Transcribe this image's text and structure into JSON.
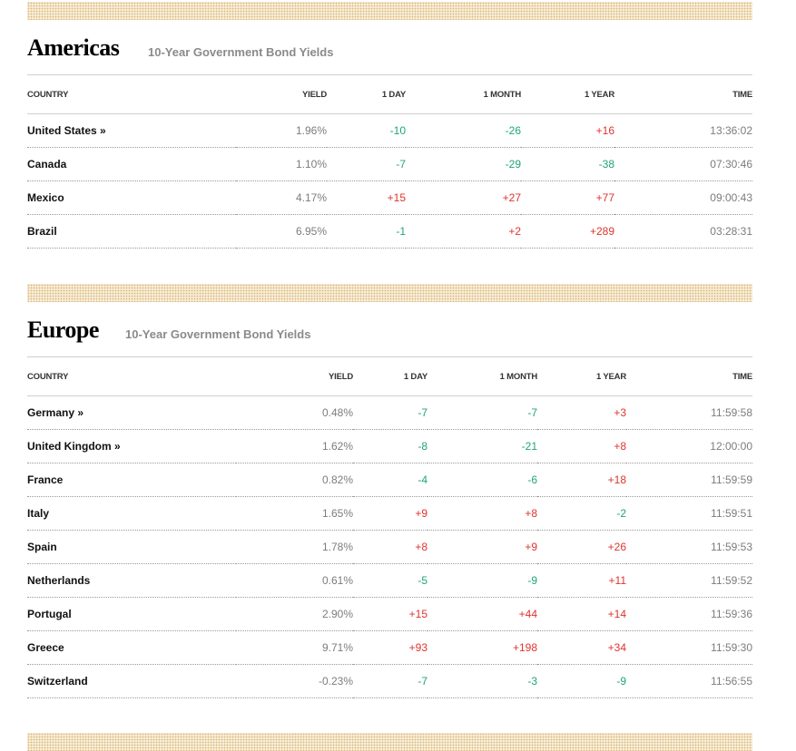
{
  "colors": {
    "up": "#e0332e",
    "down": "#1ea672",
    "band": "#d9b574"
  },
  "americas": {
    "title": "Americas",
    "subtitle": "10-Year Government Bond Yields",
    "headers": {
      "country": "COUNTRY",
      "yield": "YIELD",
      "day": "1 DAY",
      "month": "1 MONTH",
      "year": "1 YEAR",
      "time": "TIME"
    },
    "rows": [
      {
        "country": "United States »",
        "yield": "1.96%",
        "day": "-10",
        "month": "-26",
        "year": "+16",
        "time": "13:36:02"
      },
      {
        "country": "Canada",
        "yield": "1.10%",
        "day": "-7",
        "month": "-29",
        "year": "-38",
        "time": "07:30:46"
      },
      {
        "country": "Mexico",
        "yield": "4.17%",
        "day": "+15",
        "month": "+27",
        "year": "+77",
        "time": "09:00:43"
      },
      {
        "country": "Brazil",
        "yield": "6.95%",
        "day": "-1",
        "month": "+2",
        "year": "+289",
        "time": "03:28:31"
      }
    ]
  },
  "europe": {
    "title": "Europe",
    "subtitle": "10-Year Government Bond Yields",
    "headers": {
      "country": "COUNTRY",
      "yield": "YIELD",
      "day": "1 DAY",
      "month": "1 MONTH",
      "year": "1 YEAR",
      "time": "TIME"
    },
    "rows": [
      {
        "country": "Germany »",
        "yield": "0.48%",
        "day": "-7",
        "month": "-7",
        "year": "+3",
        "time": "11:59:58"
      },
      {
        "country": "United Kingdom »",
        "yield": "1.62%",
        "day": "-8",
        "month": "-21",
        "year": "+8",
        "time": "12:00:00"
      },
      {
        "country": "France",
        "yield": "0.82%",
        "day": "-4",
        "month": "-6",
        "year": "+18",
        "time": "11:59:59"
      },
      {
        "country": "Italy",
        "yield": "1.65%",
        "day": "+9",
        "month": "+8",
        "year": "-2",
        "time": "11:59:51"
      },
      {
        "country": "Spain",
        "yield": "1.78%",
        "day": "+8",
        "month": "+9",
        "year": "+26",
        "time": "11:59:53"
      },
      {
        "country": "Netherlands",
        "yield": "0.61%",
        "day": "-5",
        "month": "-9",
        "year": "+11",
        "time": "11:59:52"
      },
      {
        "country": "Portugal",
        "yield": "2.90%",
        "day": "+15",
        "month": "+44",
        "year": "+14",
        "time": "11:59:36"
      },
      {
        "country": "Greece",
        "yield": "9.71%",
        "day": "+93",
        "month": "+198",
        "year": "+34",
        "time": "11:59:30"
      },
      {
        "country": "Switzerland",
        "yield": "-0.23%",
        "day": "-7",
        "month": "-3",
        "year": "-9",
        "time": "11:56:55"
      }
    ]
  }
}
